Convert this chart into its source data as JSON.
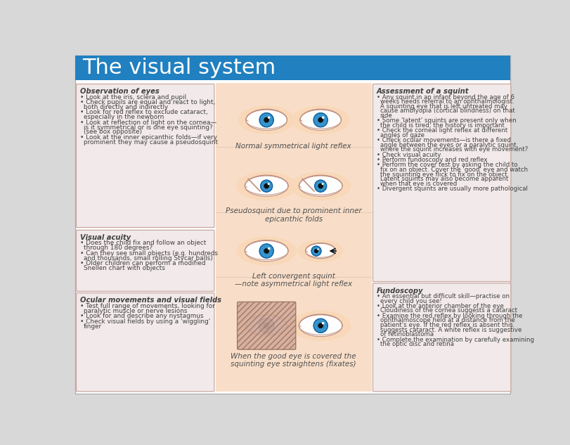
{
  "title": "The visual system",
  "title_bg": "#2080C0",
  "title_fg": "#FFFFFF",
  "bg_color": "#FFFFFF",
  "outer_bg": "#D8D8D8",
  "box_bg": "#F2EAEA",
  "box_border": "#C8A8A0",
  "center_bg": "#F8DEC8",
  "skin_color": "#F5C8A0",
  "skin_glow": "#F8D8B8",
  "eye_white": "#FFFFFF",
  "iris_color": "#3898D0",
  "pupil_color": "#101010",
  "iris_dark": "#1060A0",
  "iris_mid": "#2878B8",
  "text_color": "#404040",
  "caption_color": "#505050",
  "arrow_color": "#101010",
  "hatch_fg": "#B08878",
  "hatch_bg": "#D4A898",
  "cover_border": "#907060",
  "lid_color": "#C09080",
  "obs_title": "Observation of eyes",
  "obs_bullets": [
    "Look at the iris, sclera and pupil",
    "Check pupils are equal and react to light,\nboth directly and indirectly",
    "Look for red reflex to exclude cataract,\nespecially in the newborn",
    "Look at reflection of light on the cornea—\nis it symmetrical or is one eye squinting?\n(see box opposite)",
    "Look at the inner epicanthic folds—if very\nprominent they may cause a pseudosquint"
  ],
  "acuity_title": "Visual acuity",
  "acuity_bullets": [
    "Does the child fix and follow an object\nthrough 180 degrees?",
    "Can they see small objects (e.g. hundreds\nand thousands, small rolling Stycar balls)",
    "Older children can perform a modified\nSnellen chart with objects"
  ],
  "ocular_title": "Ocular movements and visual fields",
  "ocular_bullets": [
    "Test full range of movements, looking for\nparalytic muscle or nerve lesions",
    "Look for and describe any nystagmus",
    "Check visual fields by using a 'wiggling'\nfinger"
  ],
  "assess_title": "Assessment of a squint",
  "assess_bullets": [
    "Any squint in an infant beyond the age of 6\nweeks needs referral to an ophthalmologist.\nA squinting eye that is left untreated may\ncause amblyopia (cortical blindness) on that\nside",
    "Some 'latent' squints are present only when\nthe child is tired; the history is important",
    "Check the corneal light reflex at different\nangles of gaze",
    "Check ocular movements—is there a fixed\nangle between the eyes or a paralytic squint,\nwhere the squint increases with eye movement?",
    "Check visual acuity",
    "Perform fundoscopy and red reflex",
    "Perform the cover test by asking the child to\nfix on an object. Cover the 'good' eye and watch\nthe squinting eye flick to fix on the object.\nLatent squints may also become apparent\nwhen that eye is covered",
    "Divergent squints are usually more pathological"
  ],
  "fundoscopy_title": "Fundoscopy",
  "fundoscopy_bullets": [
    "An essential but difficult skill—practise on\nevery child you see!",
    "Look at the anterior chamber of the eye\nCloudiness of the cornea suggests a cataract",
    "Examine the red reflex by looking through the\nophthalmoscope held at a distance from the\npatient's eye. If the red reflex is absent this\nsuggests cataract. A white reflex is suggestive\nof retinoblastoma",
    "Complete the examination by carefully examining\nthe optic disc and retina"
  ],
  "cap1": "Normal symmetrical light reflex",
  "cap2": "Pseudosquint due to prominent inner\nepicanthic folds",
  "cap3": "Left convergent squint\n—note asymmetrical light reflex",
  "cap4": "When the good eye is covered the\nsquinting eye straightens (fixates)",
  "cover_test_bold": "cover test"
}
